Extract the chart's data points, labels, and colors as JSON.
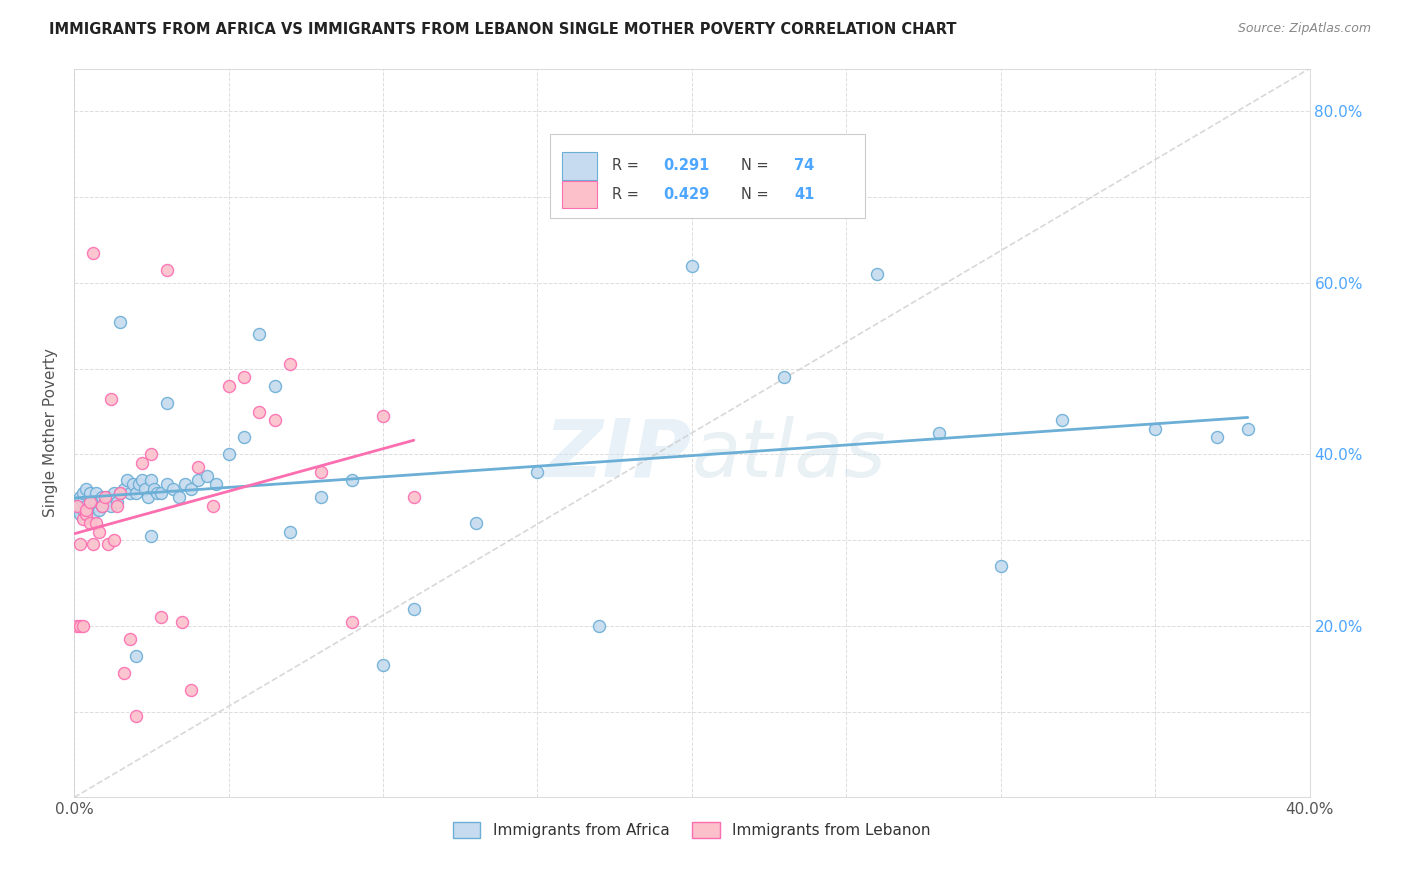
{
  "title": "IMMIGRANTS FROM AFRICA VS IMMIGRANTS FROM LEBANON SINGLE MOTHER POVERTY CORRELATION CHART",
  "source": "Source: ZipAtlas.com",
  "ylabel": "Single Mother Poverty",
  "xlim": [
    0.0,
    0.4
  ],
  "ylim": [
    0.0,
    0.85
  ],
  "R_africa": 0.291,
  "N_africa": 74,
  "R_lebanon": 0.429,
  "N_lebanon": 41,
  "color_africa": "#6baed6",
  "color_africa_fill": "#c6dbef",
  "color_lebanon": "#fb6eb0",
  "color_lebanon_fill": "#fcc0cb",
  "watermark": "ZIPatlas",
  "africa_x": [
    0.001,
    0.001,
    0.002,
    0.002,
    0.002,
    0.003,
    0.003,
    0.003,
    0.004,
    0.004,
    0.004,
    0.005,
    0.005,
    0.005,
    0.006,
    0.006,
    0.007,
    0.007,
    0.008,
    0.008,
    0.009,
    0.009,
    0.01,
    0.011,
    0.012,
    0.013,
    0.014,
    0.015,
    0.016,
    0.017,
    0.018,
    0.019,
    0.02,
    0.021,
    0.022,
    0.023,
    0.024,
    0.025,
    0.026,
    0.027,
    0.028,
    0.03,
    0.032,
    0.034,
    0.036,
    0.038,
    0.04,
    0.043,
    0.046,
    0.05,
    0.055,
    0.06,
    0.065,
    0.07,
    0.08,
    0.09,
    0.1,
    0.11,
    0.13,
    0.15,
    0.17,
    0.2,
    0.23,
    0.26,
    0.28,
    0.3,
    0.32,
    0.35,
    0.37,
    0.38,
    0.015,
    0.02,
    0.025,
    0.03
  ],
  "africa_y": [
    0.335,
    0.345,
    0.33,
    0.34,
    0.35,
    0.335,
    0.345,
    0.355,
    0.33,
    0.34,
    0.36,
    0.335,
    0.345,
    0.355,
    0.33,
    0.34,
    0.345,
    0.355,
    0.335,
    0.345,
    0.34,
    0.35,
    0.345,
    0.35,
    0.34,
    0.355,
    0.345,
    0.355,
    0.36,
    0.37,
    0.355,
    0.365,
    0.355,
    0.365,
    0.37,
    0.36,
    0.35,
    0.37,
    0.36,
    0.355,
    0.355,
    0.365,
    0.36,
    0.35,
    0.365,
    0.36,
    0.37,
    0.375,
    0.365,
    0.4,
    0.42,
    0.54,
    0.48,
    0.31,
    0.35,
    0.37,
    0.155,
    0.22,
    0.32,
    0.38,
    0.2,
    0.62,
    0.49,
    0.61,
    0.425,
    0.27,
    0.44,
    0.43,
    0.42,
    0.43,
    0.555,
    0.165,
    0.305,
    0.46
  ],
  "lebanon_x": [
    0.001,
    0.001,
    0.002,
    0.002,
    0.003,
    0.003,
    0.004,
    0.004,
    0.005,
    0.005,
    0.006,
    0.006,
    0.007,
    0.008,
    0.009,
    0.01,
    0.011,
    0.012,
    0.013,
    0.014,
    0.015,
    0.016,
    0.018,
    0.02,
    0.022,
    0.025,
    0.028,
    0.03,
    0.035,
    0.038,
    0.04,
    0.045,
    0.05,
    0.055,
    0.06,
    0.065,
    0.07,
    0.08,
    0.09,
    0.1,
    0.11
  ],
  "lebanon_y": [
    0.34,
    0.2,
    0.295,
    0.2,
    0.325,
    0.2,
    0.33,
    0.335,
    0.32,
    0.345,
    0.635,
    0.295,
    0.32,
    0.31,
    0.34,
    0.35,
    0.295,
    0.465,
    0.3,
    0.34,
    0.355,
    0.145,
    0.185,
    0.095,
    0.39,
    0.4,
    0.21,
    0.615,
    0.205,
    0.125,
    0.385,
    0.34,
    0.48,
    0.49,
    0.45,
    0.44,
    0.505,
    0.38,
    0.205,
    0.445,
    0.35
  ]
}
